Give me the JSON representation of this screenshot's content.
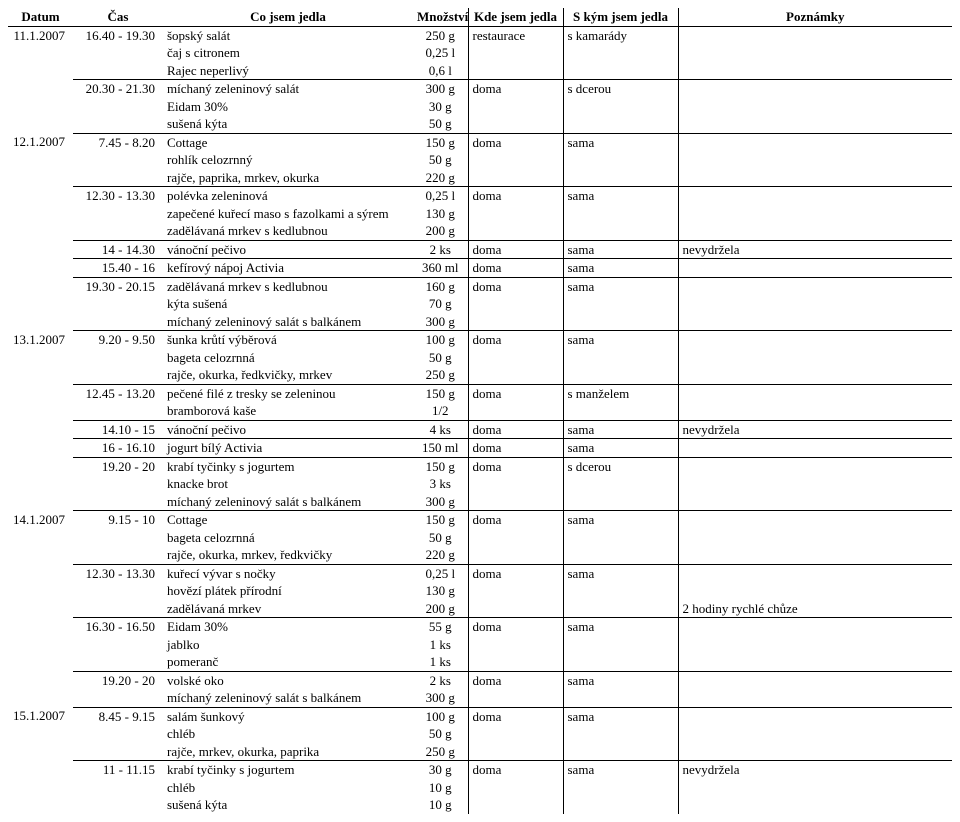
{
  "headers": {
    "date": "Datum",
    "time": "Čas",
    "food": "Co jsem jedla",
    "amount": "Množství",
    "where": "Kde jsem jedla",
    "who": "S kým jsem jedla",
    "notes": "Poznámky"
  },
  "rows": [
    {
      "date": "11.1.2007",
      "time": "16.40 - 19.30",
      "food": "šopský salát",
      "amount": "250 g",
      "where": "restaurace",
      "who": "s kamarády",
      "notes": "",
      "top": true
    },
    {
      "date": "",
      "time": "",
      "food": "čaj s citronem",
      "amount": "0,25 l",
      "where": "",
      "who": "",
      "notes": ""
    },
    {
      "date": "",
      "time": "",
      "food": "Rajec neperlivý",
      "amount": "0,6 l",
      "where": "",
      "who": "",
      "notes": ""
    },
    {
      "date": "",
      "time": "20.30 - 21.30",
      "food": "míchaný zeleninový salát",
      "amount": "300 g",
      "where": "doma",
      "who": "s dcerou",
      "notes": "",
      "top": true
    },
    {
      "date": "",
      "time": "",
      "food": "Eidam 30%",
      "amount": "30 g",
      "where": "",
      "who": "",
      "notes": ""
    },
    {
      "date": "",
      "time": "",
      "food": "sušená kýta",
      "amount": "50 g",
      "where": "",
      "who": "",
      "notes": ""
    },
    {
      "date": "12.1.2007",
      "time": "7.45 - 8.20",
      "food": "Cottage",
      "amount": "150 g",
      "where": "doma",
      "who": "sama",
      "notes": "",
      "top": true
    },
    {
      "date": "",
      "time": "",
      "food": "rohlík celozrnný",
      "amount": "50 g",
      "where": "",
      "who": "",
      "notes": ""
    },
    {
      "date": "",
      "time": "",
      "food": "rajče, paprika, mrkev, okurka",
      "amount": "220 g",
      "where": "",
      "who": "",
      "notes": ""
    },
    {
      "date": "",
      "time": "12.30 - 13.30",
      "food": "polévka zeleninová",
      "amount": "0,25 l",
      "where": "doma",
      "who": "sama",
      "notes": "",
      "top": true
    },
    {
      "date": "",
      "time": "",
      "food": "zapečené kuřecí maso s fazolkami a sýrem",
      "amount": "130 g",
      "where": "",
      "who": "",
      "notes": ""
    },
    {
      "date": "",
      "time": "",
      "food": "zadělávaná mrkev s kedlubnou",
      "amount": "200 g",
      "where": "",
      "who": "",
      "notes": ""
    },
    {
      "date": "",
      "time": "14 - 14.30",
      "food": "vánoční pečivo",
      "amount": "2 ks",
      "where": "doma",
      "who": "sama",
      "notes": "nevydržela",
      "top": true
    },
    {
      "date": "",
      "time": "15.40 - 16",
      "food": "kefírový nápoj Activia",
      "amount": "360 ml",
      "where": "doma",
      "who": "sama",
      "notes": "",
      "top": true
    },
    {
      "date": "",
      "time": "19.30 - 20.15",
      "food": "zadělávaná mrkev s kedlubnou",
      "amount": "160 g",
      "where": "doma",
      "who": "sama",
      "notes": "",
      "top": true
    },
    {
      "date": "",
      "time": "",
      "food": "kýta sušená",
      "amount": "70 g",
      "where": "",
      "who": "",
      "notes": ""
    },
    {
      "date": "",
      "time": "",
      "food": "míchaný zeleninový salát s balkánem",
      "amount": "300 g",
      "where": "",
      "who": "",
      "notes": ""
    },
    {
      "date": "13.1.2007",
      "time": "9.20 - 9.50",
      "food": "šunka krůtí výběrová",
      "amount": "100 g",
      "where": "doma",
      "who": "sama",
      "notes": "",
      "top": true
    },
    {
      "date": "",
      "time": "",
      "food": "bageta celozrnná",
      "amount": "50 g",
      "where": "",
      "who": "",
      "notes": ""
    },
    {
      "date": "",
      "time": "",
      "food": "rajče, okurka, ředkvičky, mrkev",
      "amount": "250 g",
      "where": "",
      "who": "",
      "notes": ""
    },
    {
      "date": "",
      "time": "12.45 - 13.20",
      "food": "pečené filé z tresky se zeleninou",
      "amount": "150 g",
      "where": "doma",
      "who": "s manželem",
      "notes": "",
      "top": true
    },
    {
      "date": "",
      "time": "",
      "food": "bramborová kaše",
      "amount": "1/2",
      "where": "",
      "who": "",
      "notes": ""
    },
    {
      "date": "",
      "time": "14.10 - 15",
      "food": "vánoční pečivo",
      "amount": "4 ks",
      "where": "doma",
      "who": "sama",
      "notes": "nevydržela",
      "top": true
    },
    {
      "date": "",
      "time": "16 - 16.10",
      "food": "jogurt bílý Activia",
      "amount": "150 ml",
      "where": "doma",
      "who": "sama",
      "notes": "",
      "top": true
    },
    {
      "date": "",
      "time": "19.20 - 20",
      "food": "krabí tyčinky s jogurtem",
      "amount": "150 g",
      "where": "doma",
      "who": "s dcerou",
      "notes": "",
      "top": true
    },
    {
      "date": "",
      "time": "",
      "food": "knacke brot",
      "amount": "3 ks",
      "where": "",
      "who": "",
      "notes": ""
    },
    {
      "date": "",
      "time": "",
      "food": "míchaný zeleninový salát s balkánem",
      "amount": "300 g",
      "where": "",
      "who": "",
      "notes": ""
    },
    {
      "date": "14.1.2007",
      "time": "9.15 - 10",
      "food": "Cottage",
      "amount": "150 g",
      "where": "doma",
      "who": "sama",
      "notes": "",
      "top": true
    },
    {
      "date": "",
      "time": "",
      "food": "bageta celozrnná",
      "amount": "50 g",
      "where": "",
      "who": "",
      "notes": ""
    },
    {
      "date": "",
      "time": "",
      "food": "rajče, okurka, mrkev, ředkvičky",
      "amount": "220 g",
      "where": "",
      "who": "",
      "notes": ""
    },
    {
      "date": "",
      "time": "12.30 - 13.30",
      "food": "kuřecí vývar s nočky",
      "amount": "0,25 l",
      "where": "doma",
      "who": "sama",
      "notes": "",
      "top": true
    },
    {
      "date": "",
      "time": "",
      "food": "hovězí plátek přírodní",
      "amount": "130 g",
      "where": "",
      "who": "",
      "notes": ""
    },
    {
      "date": "",
      "time": "",
      "food": "zadělávaná mrkev",
      "amount": "200 g",
      "where": "",
      "who": "",
      "notes": "2 hodiny rychlé chůze"
    },
    {
      "date": "",
      "time": "16.30 - 16.50",
      "food": "Eidam 30%",
      "amount": "55 g",
      "where": "doma",
      "who": "sama",
      "notes": "",
      "top": true
    },
    {
      "date": "",
      "time": "",
      "food": "jablko",
      "amount": "1 ks",
      "where": "",
      "who": "",
      "notes": ""
    },
    {
      "date": "",
      "time": "",
      "food": "pomeranč",
      "amount": "1 ks",
      "where": "",
      "who": "",
      "notes": ""
    },
    {
      "date": "",
      "time": "19.20 - 20",
      "food": "volské oko",
      "amount": "2 ks",
      "where": "doma",
      "who": "sama",
      "notes": "",
      "top": true
    },
    {
      "date": "",
      "time": "",
      "food": "míchaný zeleninový salát s balkánem",
      "amount": "300 g",
      "where": "",
      "who": "",
      "notes": ""
    },
    {
      "date": "15.1.2007",
      "time": "8.45 - 9.15",
      "food": "salám šunkový",
      "amount": "100 g",
      "where": "doma",
      "who": "sama",
      "notes": "",
      "top": true
    },
    {
      "date": "",
      "time": "",
      "food": "chléb",
      "amount": "50 g",
      "where": "",
      "who": "",
      "notes": ""
    },
    {
      "date": "",
      "time": "",
      "food": "rajče, mrkev, okurka, paprika",
      "amount": "250 g",
      "where": "",
      "who": "",
      "notes": ""
    },
    {
      "date": "",
      "time": "11 - 11.15",
      "food": "krabí tyčinky s jogurtem",
      "amount": "30 g",
      "where": "doma",
      "who": "sama",
      "notes": "nevydržela",
      "top": true
    },
    {
      "date": "",
      "time": "",
      "food": "chléb",
      "amount": "10 g",
      "where": "",
      "who": "",
      "notes": ""
    },
    {
      "date": "",
      "time": "",
      "food": "sušená kýta",
      "amount": "10 g",
      "where": "",
      "who": "",
      "notes": ""
    }
  ]
}
